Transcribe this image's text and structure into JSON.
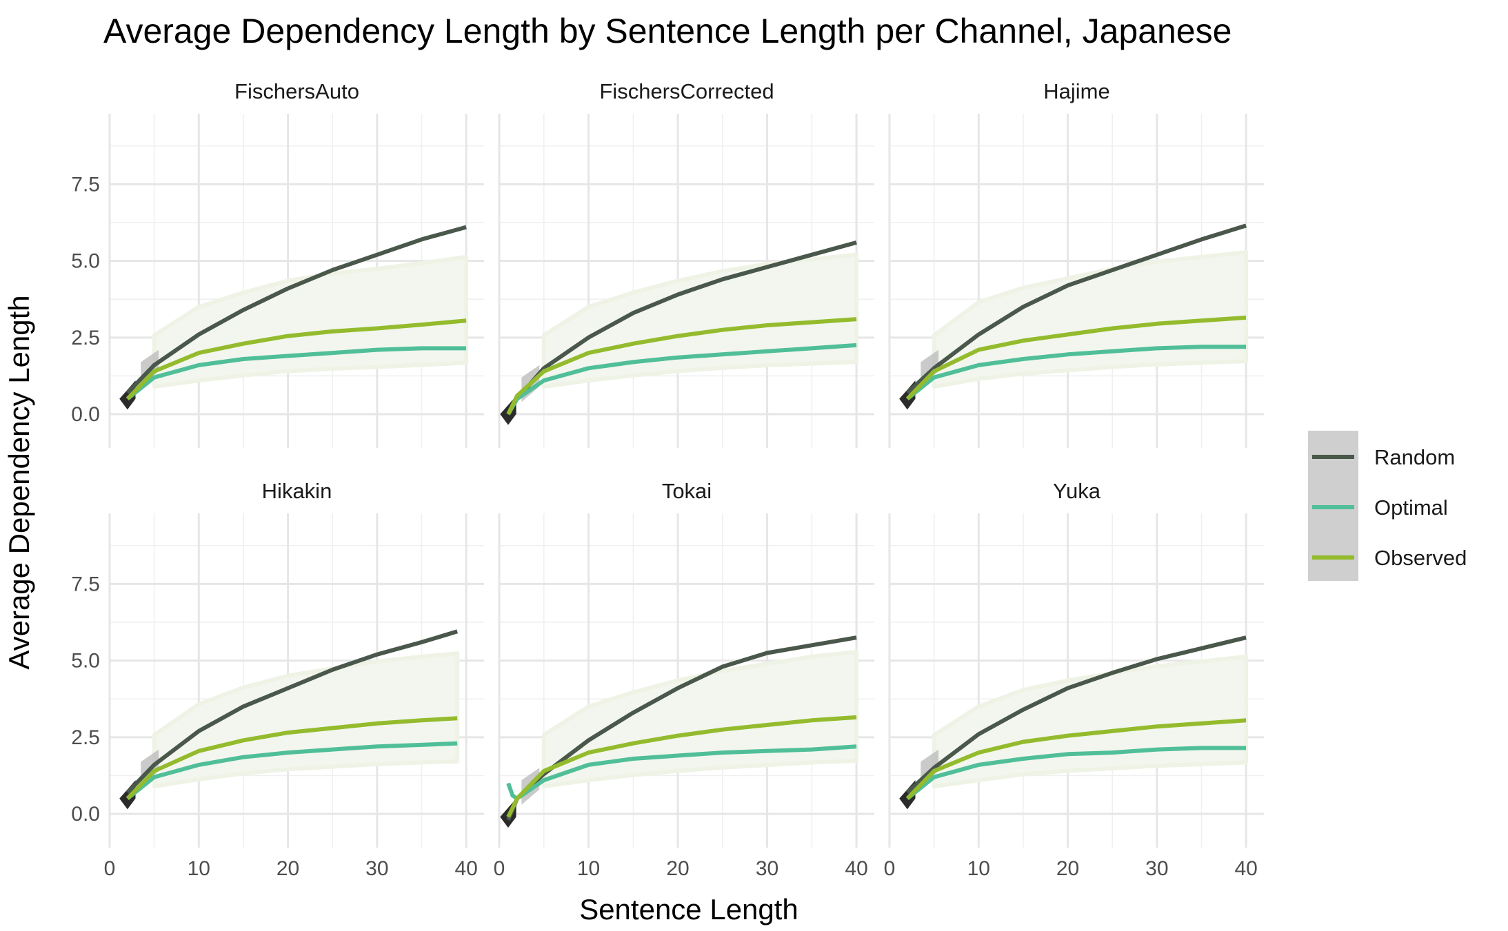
{
  "chart_data": {
    "type": "line",
    "title": "Average Dependency Length by Sentence Length per Channel, Japanese",
    "xlabel": "Sentence Length",
    "ylabel": "Average Dependency Length",
    "xlim": [
      0,
      42
    ],
    "ylim": [
      -1.1,
      9.8
    ],
    "x_ticks": [
      "0",
      "10",
      "20",
      "30",
      "40"
    ],
    "y_ticks": [
      "0.0",
      "2.5",
      "5.0",
      "7.5"
    ],
    "legend": {
      "position": "right",
      "entries": [
        {
          "name": "Random",
          "color": "#4a574b"
        },
        {
          "name": "Optimal",
          "color": "#50bf99"
        },
        {
          "name": "Observed",
          "color": "#94bb2d"
        }
      ]
    },
    "panels": [
      {
        "name": "FischersAuto",
        "series": [
          {
            "name": "Random",
            "x": [
              2,
              5,
              10,
              15,
              20,
              25,
              30,
              35,
              40
            ],
            "y": [
              0.7,
              1.6,
              2.6,
              3.4,
              4.1,
              4.7,
              5.2,
              5.7,
              6.1
            ]
          },
          {
            "name": "Optimal",
            "x": [
              2,
              5,
              10,
              15,
              20,
              25,
              30,
              35,
              40
            ],
            "y": [
              0.5,
              1.2,
              1.6,
              1.8,
              1.9,
              2.0,
              2.1,
              2.15,
              2.15
            ]
          },
          {
            "name": "Observed",
            "x": [
              2,
              5,
              10,
              15,
              20,
              25,
              30,
              35,
              40
            ],
            "y": [
              0.5,
              1.4,
              2.0,
              2.3,
              2.55,
              2.7,
              2.8,
              2.92,
              3.05
            ]
          }
        ]
      },
      {
        "name": "FischersCorrected",
        "series": [
          {
            "name": "Random",
            "x": [
              1,
              2,
              5,
              10,
              15,
              20,
              25,
              30,
              35,
              40
            ],
            "y": [
              0.0,
              0.5,
              1.5,
              2.5,
              3.3,
              3.9,
              4.4,
              4.8,
              5.2,
              5.6
            ]
          },
          {
            "name": "Optimal",
            "x": [
              1,
              2,
              5,
              10,
              15,
              20,
              25,
              30,
              35,
              40
            ],
            "y": [
              0.0,
              0.5,
              1.1,
              1.5,
              1.7,
              1.85,
              1.95,
              2.05,
              2.15,
              2.25
            ]
          },
          {
            "name": "Observed",
            "x": [
              1,
              2,
              5,
              10,
              15,
              20,
              25,
              30,
              35,
              40
            ],
            "y": [
              0.0,
              0.6,
              1.4,
              2.0,
              2.3,
              2.55,
              2.75,
              2.9,
              3.0,
              3.1
            ]
          }
        ]
      },
      {
        "name": "Hajime",
        "series": [
          {
            "name": "Random",
            "x": [
              2,
              5,
              10,
              15,
              20,
              25,
              30,
              35,
              40
            ],
            "y": [
              0.7,
              1.5,
              2.6,
              3.5,
              4.2,
              4.7,
              5.2,
              5.7,
              6.15
            ]
          },
          {
            "name": "Optimal",
            "x": [
              2,
              5,
              10,
              15,
              20,
              25,
              30,
              35,
              40
            ],
            "y": [
              0.5,
              1.2,
              1.6,
              1.8,
              1.95,
              2.05,
              2.15,
              2.2,
              2.2
            ]
          },
          {
            "name": "Observed",
            "x": [
              2,
              5,
              10,
              15,
              20,
              25,
              30,
              35,
              40
            ],
            "y": [
              0.5,
              1.4,
              2.1,
              2.4,
              2.6,
              2.8,
              2.95,
              3.05,
              3.15
            ]
          }
        ]
      },
      {
        "name": "Hikakin",
        "series": [
          {
            "name": "Random",
            "x": [
              2,
              5,
              10,
              15,
              20,
              25,
              30,
              35,
              39
            ],
            "y": [
              0.7,
              1.6,
              2.7,
              3.5,
              4.1,
              4.7,
              5.2,
              5.6,
              5.95
            ]
          },
          {
            "name": "Optimal",
            "x": [
              2,
              5,
              10,
              15,
              20,
              25,
              30,
              35,
              39
            ],
            "y": [
              0.5,
              1.2,
              1.6,
              1.85,
              2.0,
              2.1,
              2.2,
              2.25,
              2.3
            ]
          },
          {
            "name": "Observed",
            "x": [
              2,
              5,
              10,
              15,
              20,
              25,
              30,
              35,
              39
            ],
            "y": [
              0.5,
              1.4,
              2.05,
              2.4,
              2.65,
              2.8,
              2.95,
              3.05,
              3.12
            ]
          }
        ]
      },
      {
        "name": "Tokai",
        "series": [
          {
            "name": "Random",
            "x": [
              1,
              2,
              5,
              10,
              15,
              20,
              25,
              30,
              35,
              40
            ],
            "y": [
              -0.2,
              0.5,
              1.3,
              2.4,
              3.3,
              4.1,
              4.8,
              5.25,
              5.5,
              5.75
            ]
          },
          {
            "name": "Optimal",
            "x": [
              1,
              1.5,
              2,
              5,
              10,
              15,
              20,
              25,
              30,
              35,
              40
            ],
            "y": [
              1.0,
              0.6,
              0.5,
              1.1,
              1.6,
              1.8,
              1.9,
              2.0,
              2.05,
              2.1,
              2.2
            ]
          },
          {
            "name": "Observed",
            "x": [
              1,
              2,
              5,
              10,
              15,
              20,
              25,
              30,
              35,
              40
            ],
            "y": [
              -0.1,
              0.5,
              1.4,
              2.0,
              2.3,
              2.55,
              2.75,
              2.9,
              3.05,
              3.15
            ]
          }
        ]
      },
      {
        "name": "Yuka",
        "series": [
          {
            "name": "Random",
            "x": [
              2,
              5,
              10,
              15,
              20,
              25,
              30,
              35,
              40
            ],
            "y": [
              0.7,
              1.5,
              2.6,
              3.4,
              4.1,
              4.6,
              5.05,
              5.4,
              5.75
            ]
          },
          {
            "name": "Optimal",
            "x": [
              2,
              5,
              10,
              15,
              20,
              25,
              30,
              35,
              40
            ],
            "y": [
              0.5,
              1.2,
              1.6,
              1.8,
              1.95,
              2.0,
              2.1,
              2.15,
              2.15
            ]
          },
          {
            "name": "Observed",
            "x": [
              2,
              5,
              10,
              15,
              20,
              25,
              30,
              35,
              40
            ],
            "y": [
              0.5,
              1.4,
              2.0,
              2.35,
              2.55,
              2.7,
              2.85,
              2.95,
              3.05
            ]
          }
        ]
      }
    ]
  }
}
